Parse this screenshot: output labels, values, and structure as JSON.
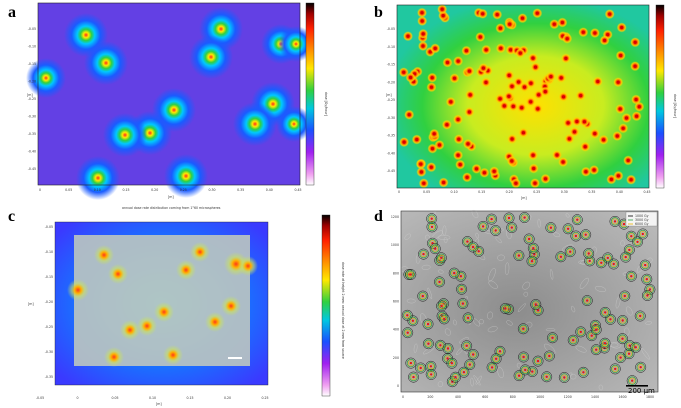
{
  "panels": {
    "a": {
      "letter": "a",
      "cbar_label": "dose [Gy/hour]",
      "xlabel": "[m]",
      "ylabel": "[m]",
      "cbar_ticks": [
        "100",
        "",
        "",
        "",
        "",
        "",
        "",
        "",
        "",
        "",
        "",
        "",
        "",
        "",
        "",
        "",
        "",
        "",
        "",
        "1"
      ],
      "xticks": [
        "0",
        "0.05",
        "0.10",
        "0.15",
        "0.20",
        "0.25",
        "0.30",
        "0.35",
        "0.40",
        "0.45"
      ],
      "yticks": [
        "-0.05",
        "-0.10",
        "-0.15",
        "-0.20",
        "-0.25",
        "-0.30",
        "-0.35",
        "-0.40",
        "-0.45"
      ]
    },
    "b": {
      "letter": "b",
      "cbar_label": "dose [Gy/hour]",
      "xlabel": "[m]",
      "ylabel": "[m]",
      "xticks": [
        "0",
        "0.05",
        "0.10",
        "0.15",
        "0.20",
        "0.25",
        "0.30",
        "0.35",
        "0.40",
        "0.45"
      ],
      "yticks": [
        "-0.05",
        "-0.10",
        "-0.15",
        "-0.20",
        "-0.25",
        "-0.30",
        "-0.35",
        "-0.40",
        "-0.45"
      ]
    },
    "c": {
      "letter": "c",
      "title": "annual dose rate distribution coming from 1°60 microspheres",
      "cbar_label": "dose rate at height 2 mm: annual dose at 2 mm from source",
      "xlabel": "[m]",
      "ylabel": "[m]",
      "xticks": [
        "-0.05",
        "0",
        "0.05",
        "0.10",
        "0.15",
        "0.20",
        "0.25"
      ],
      "yticks": [
        "-0.05",
        "-0.10",
        "-0.15",
        "-0.20",
        "-0.25",
        "-0.30",
        "-0.35"
      ],
      "cbar_ticks": [
        "10",
        "",
        "",
        "",
        "",
        "",
        "",
        "",
        "",
        "0.01"
      ]
    },
    "d": {
      "letter": "d",
      "legend": [
        "1000 Gy",
        "3000 Gy",
        "6000 Gy"
      ],
      "scale_bar": "200 μm",
      "xticks": [
        "0",
        "200",
        "400",
        "600",
        "800",
        "1000",
        "1200",
        "1400",
        "1600",
        "1800"
      ],
      "yticks": [
        "0",
        "200",
        "400",
        "600",
        "800",
        "1000",
        "1200"
      ]
    }
  },
  "colors": {
    "hot": "#e8161b",
    "accent_green": "#2ea043",
    "contour": "#1a1a1a"
  }
}
